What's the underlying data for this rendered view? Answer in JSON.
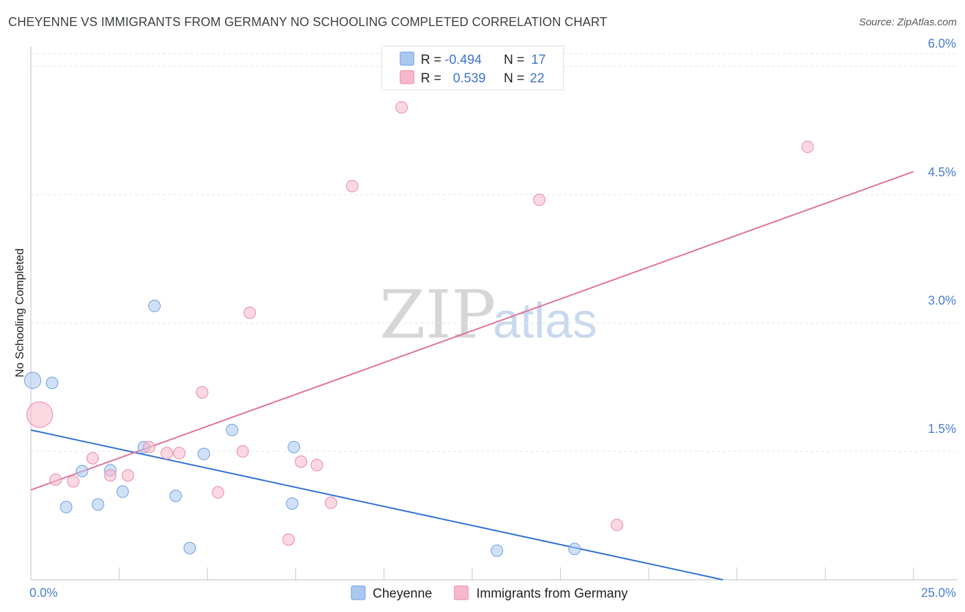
{
  "header": {
    "title": "CHEYENNE VS IMMIGRANTS FROM GERMANY NO SCHOOLING COMPLETED CORRELATION CHART",
    "source": "Source: ZipAtlas.com"
  },
  "watermark": {
    "zip": "ZIP",
    "atlas": "atlas"
  },
  "legend": {
    "rows": [
      {
        "r_label": "R =",
        "r_value": "-0.494",
        "n_label": "N =",
        "n_value": "17",
        "color": "#a9c8f0"
      },
      {
        "r_label": "R =",
        "r_value": "0.539",
        "n_label": "N =",
        "n_value": "22",
        "color": "#f7b8cb"
      }
    ]
  },
  "bottom_legend": {
    "items": [
      {
        "label": "Cheyenne",
        "color": "#a9c8f0"
      },
      {
        "label": "Immigrants from Germany",
        "color": "#f7b8cb"
      }
    ]
  },
  "chart_data": {
    "type": "scatter",
    "title": "CHEYENNE VS IMMIGRANTS FROM GERMANY NO SCHOOLING COMPLETED CORRELATION CHART",
    "xlabel": "",
    "ylabel": "No Schooling Completed",
    "xlim": [
      0,
      25
    ],
    "ylim": [
      0,
      6.15
    ],
    "x_tick_labels": [
      {
        "value": 0,
        "label": "0.0%"
      },
      {
        "value": 25,
        "label": "25.0%"
      }
    ],
    "y_ticks": [
      {
        "value": 1.5,
        "label": "1.5%"
      },
      {
        "value": 3.0,
        "label": "3.0%"
      },
      {
        "value": 4.5,
        "label": "4.5%"
      },
      {
        "value": 6.0,
        "label": "6.0%"
      }
    ],
    "series": [
      {
        "name": "Cheyenne",
        "color": "#a9c8f0",
        "stroke": "#6a9de0",
        "line_color": "#2f6fd6",
        "trend": {
          "x": [
            0,
            19.6
          ],
          "y": [
            1.75,
            0.0
          ]
        },
        "points": [
          {
            "x": 0.05,
            "y": 2.33,
            "size": 1.4
          },
          {
            "x": 0.6,
            "y": 2.3,
            "size": 1
          },
          {
            "x": 1.0,
            "y": 0.85,
            "size": 1
          },
          {
            "x": 1.45,
            "y": 1.27,
            "size": 1
          },
          {
            "x": 1.9,
            "y": 0.88,
            "size": 1
          },
          {
            "x": 2.25,
            "y": 1.28,
            "size": 1
          },
          {
            "x": 2.6,
            "y": 1.03,
            "size": 1
          },
          {
            "x": 3.2,
            "y": 1.55,
            "size": 1
          },
          {
            "x": 3.5,
            "y": 3.2,
            "size": 1
          },
          {
            "x": 4.1,
            "y": 0.98,
            "size": 1
          },
          {
            "x": 4.5,
            "y": 0.37,
            "size": 1
          },
          {
            "x": 4.9,
            "y": 1.47,
            "size": 1
          },
          {
            "x": 5.7,
            "y": 1.75,
            "size": 1
          },
          {
            "x": 7.4,
            "y": 0.89,
            "size": 1
          },
          {
            "x": 7.45,
            "y": 1.55,
            "size": 1
          },
          {
            "x": 13.2,
            "y": 0.34,
            "size": 1
          },
          {
            "x": 15.4,
            "y": 0.36,
            "size": 1
          }
        ]
      },
      {
        "name": "Immigrants from Germany",
        "color": "#f7b8cb",
        "stroke": "#e889a6",
        "line_color": "#e0709a",
        "trend": {
          "x": [
            0,
            25
          ],
          "y": [
            1.05,
            4.77
          ]
        },
        "points": [
          {
            "x": 0.25,
            "y": 1.93,
            "size": 2.2
          },
          {
            "x": 0.7,
            "y": 1.17,
            "size": 1
          },
          {
            "x": 1.2,
            "y": 1.15,
            "size": 1
          },
          {
            "x": 1.75,
            "y": 1.42,
            "size": 1
          },
          {
            "x": 2.25,
            "y": 1.22,
            "size": 1
          },
          {
            "x": 2.75,
            "y": 1.22,
            "size": 1
          },
          {
            "x": 3.35,
            "y": 1.55,
            "size": 1
          },
          {
            "x": 3.85,
            "y": 1.48,
            "size": 1
          },
          {
            "x": 4.2,
            "y": 1.48,
            "size": 1
          },
          {
            "x": 4.85,
            "y": 2.19,
            "size": 1
          },
          {
            "x": 5.3,
            "y": 1.02,
            "size": 1
          },
          {
            "x": 6.0,
            "y": 1.5,
            "size": 1
          },
          {
            "x": 6.2,
            "y": 3.12,
            "size": 1
          },
          {
            "x": 7.3,
            "y": 0.47,
            "size": 1
          },
          {
            "x": 7.65,
            "y": 1.38,
            "size": 1
          },
          {
            "x": 8.1,
            "y": 1.34,
            "size": 1
          },
          {
            "x": 8.5,
            "y": 0.9,
            "size": 1
          },
          {
            "x": 9.1,
            "y": 4.6,
            "size": 1
          },
          {
            "x": 10.5,
            "y": 5.52,
            "size": 1
          },
          {
            "x": 14.4,
            "y": 4.44,
            "size": 1
          },
          {
            "x": 16.6,
            "y": 0.64,
            "size": 1
          },
          {
            "x": 22.0,
            "y": 5.06,
            "size": 1
          }
        ]
      }
    ]
  }
}
